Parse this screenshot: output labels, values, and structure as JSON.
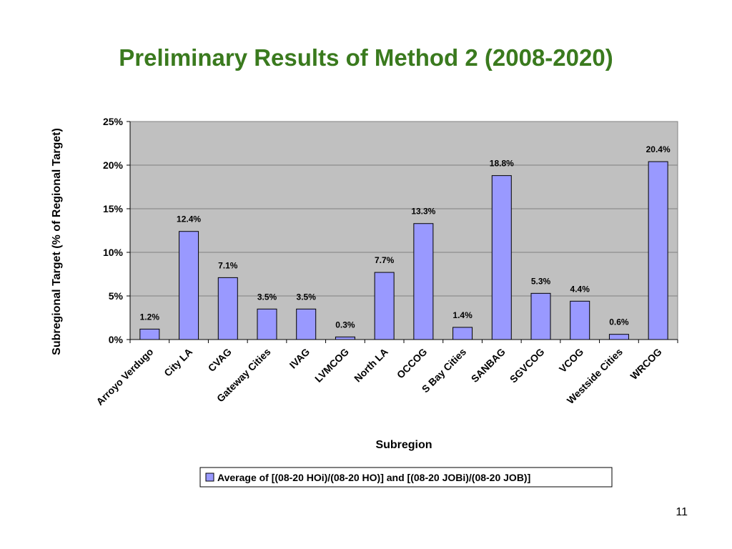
{
  "slide": {
    "title": "Preliminary Results of Method 2 (2008-2020)",
    "page_number": "11"
  },
  "colors": {
    "title": "#3a7a1e",
    "bar_fill": "#9999ff",
    "bar_stroke": "#000000",
    "plot_background": "#c0c0c0",
    "gridline": "#808080"
  },
  "chart_data": {
    "type": "bar",
    "title": "",
    "xlabel": "Subregion",
    "ylabel": "Subregional Target (% of Regional Target)",
    "ylim": [
      0,
      25
    ],
    "yticks": [
      "0%",
      "5%",
      "10%",
      "15%",
      "20%",
      "25%"
    ],
    "ytick_values": [
      0,
      5,
      10,
      15,
      20,
      25
    ],
    "grid": true,
    "legend_position": "bottom",
    "categories": [
      "Arroyo Verdugo",
      "City LA",
      "CVAG",
      "Gateway Cities",
      "IVAG",
      "LVMCOG",
      "North LA",
      "OCCOG",
      "S Bay Cities",
      "SANBAG",
      "SGVCOG",
      "VCOG",
      "Westside Cities",
      "WRCOG"
    ],
    "series": [
      {
        "name": "Average of [(08-20 HOi)/(08-20 HO)] and [(08-20 JOBi)/(08-20 JOB)]",
        "values": [
          1.2,
          12.4,
          7.1,
          3.5,
          3.5,
          0.3,
          7.7,
          13.3,
          1.4,
          18.8,
          5.3,
          4.4,
          0.6,
          20.4
        ],
        "labels": [
          "1.2%",
          "12.4%",
          "7.1%",
          "3.5%",
          "3.5%",
          "0.3%",
          "7.7%",
          "13.3%",
          "1.4%",
          "18.8%",
          "5.3%",
          "4.4%",
          "0.6%",
          "20.4%"
        ]
      }
    ]
  }
}
